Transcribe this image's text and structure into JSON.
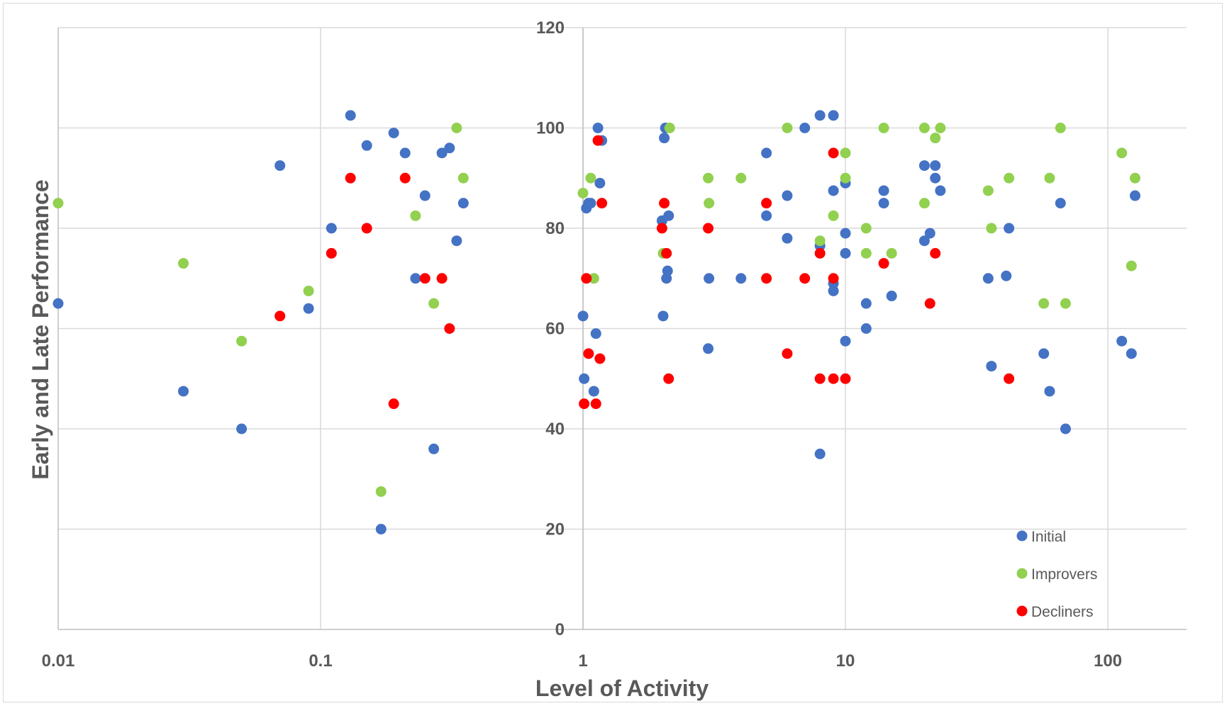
{
  "chart_data": {
    "type": "scatter",
    "title": "",
    "xlabel": "Level of Activity",
    "ylabel": "Early and Late Performance",
    "x_scale": "log",
    "xlim": [
      0.01,
      200
    ],
    "ylim": [
      0,
      120
    ],
    "x_ticks": [
      "0.01",
      "0.1",
      "1",
      "10",
      "100"
    ],
    "y_ticks": [
      "0",
      "20",
      "40",
      "60",
      "80",
      "100",
      "120"
    ],
    "grid": true,
    "legend_position": "bottom-right",
    "series": [
      {
        "name": "Initial",
        "color": "#4472C4",
        "points": [
          [
            0.01,
            65
          ],
          [
            0.03,
            47.5
          ],
          [
            0.05,
            40
          ],
          [
            0.07,
            92.5
          ],
          [
            0.09,
            64
          ],
          [
            0.11,
            80
          ],
          [
            0.13,
            102.5
          ],
          [
            0.15,
            96.5
          ],
          [
            0.17,
            20
          ],
          [
            0.19,
            99
          ],
          [
            0.21,
            95
          ],
          [
            0.23,
            70
          ],
          [
            0.25,
            86.5
          ],
          [
            0.27,
            36
          ],
          [
            0.29,
            95
          ],
          [
            0.31,
            96
          ],
          [
            0.33,
            77.5
          ],
          [
            0.35,
            85
          ],
          [
            1.0,
            62.5
          ],
          [
            1.01,
            50
          ],
          [
            1.03,
            84
          ],
          [
            1.05,
            85
          ],
          [
            1.07,
            85
          ],
          [
            1.1,
            47.5
          ],
          [
            1.12,
            59
          ],
          [
            1.14,
            100
          ],
          [
            1.16,
            89
          ],
          [
            1.18,
            97.5
          ],
          [
            2.0,
            81.5
          ],
          [
            2.02,
            62.5
          ],
          [
            2.04,
            98
          ],
          [
            2.06,
            100
          ],
          [
            2.08,
            70
          ],
          [
            2.1,
            71.5
          ],
          [
            2.12,
            82.5
          ],
          [
            3.0,
            56
          ],
          [
            3.02,
            70
          ],
          [
            4.0,
            70
          ],
          [
            5.0,
            95
          ],
          [
            5.0,
            82.5
          ],
          [
            6.0,
            86.5
          ],
          [
            6.0,
            78
          ],
          [
            7.0,
            100
          ],
          [
            8.0,
            102.5
          ],
          [
            8.0,
            76.5
          ],
          [
            8.0,
            35
          ],
          [
            9.0,
            102.5
          ],
          [
            9.0,
            87.5
          ],
          [
            9.0,
            69
          ],
          [
            9.0,
            67.5
          ],
          [
            10.0,
            89
          ],
          [
            10.0,
            79
          ],
          [
            10.0,
            75
          ],
          [
            10.0,
            57.5
          ],
          [
            12.0,
            65
          ],
          [
            12.0,
            60
          ],
          [
            14.0,
            87.5
          ],
          [
            14.0,
            85
          ],
          [
            15.0,
            66.5
          ],
          [
            20.0,
            92.5
          ],
          [
            20.0,
            77.5
          ],
          [
            21.0,
            79
          ],
          [
            22.0,
            92.5
          ],
          [
            22.0,
            90
          ],
          [
            23.0,
            87.5
          ],
          [
            35.0,
            70
          ],
          [
            36.0,
            52.5
          ],
          [
            41.0,
            70.5
          ],
          [
            42.0,
            80
          ],
          [
            57.0,
            55
          ],
          [
            60.0,
            47.5
          ],
          [
            66.0,
            85
          ],
          [
            69.0,
            40
          ],
          [
            113.0,
            57.5
          ],
          [
            123.0,
            55
          ],
          [
            127.0,
            86.5
          ]
        ]
      },
      {
        "name": "Improvers",
        "color": "#92D050",
        "points": [
          [
            0.01,
            85
          ],
          [
            0.03,
            73
          ],
          [
            0.05,
            57.5
          ],
          [
            0.09,
            67.5
          ],
          [
            0.17,
            27.5
          ],
          [
            0.23,
            82.5
          ],
          [
            0.27,
            65
          ],
          [
            0.33,
            100
          ],
          [
            0.35,
            90
          ],
          [
            1.0,
            87
          ],
          [
            1.07,
            90
          ],
          [
            1.1,
            70
          ],
          [
            2.02,
            75
          ],
          [
            2.14,
            100
          ],
          [
            3.0,
            90
          ],
          [
            3.02,
            85
          ],
          [
            4.0,
            90
          ],
          [
            6.0,
            100
          ],
          [
            8.0,
            77.5
          ],
          [
            9.0,
            82.5
          ],
          [
            10.0,
            95
          ],
          [
            10.0,
            90
          ],
          [
            12.0,
            80
          ],
          [
            12.0,
            75
          ],
          [
            14.0,
            100
          ],
          [
            15.0,
            75
          ],
          [
            20.0,
            100
          ],
          [
            20.0,
            85
          ],
          [
            22.0,
            98
          ],
          [
            23.0,
            100
          ],
          [
            35.0,
            87.5
          ],
          [
            36.0,
            80
          ],
          [
            42.0,
            90
          ],
          [
            57.0,
            65
          ],
          [
            60.0,
            90
          ],
          [
            66.0,
            100
          ],
          [
            69.0,
            65
          ],
          [
            113.0,
            95
          ],
          [
            123.0,
            72.5
          ],
          [
            127.0,
            90
          ]
        ]
      },
      {
        "name": "Decliners",
        "color": "#FF0000",
        "points": [
          [
            0.07,
            62.5
          ],
          [
            0.11,
            75
          ],
          [
            0.13,
            90
          ],
          [
            0.15,
            80
          ],
          [
            0.19,
            45
          ],
          [
            0.21,
            90
          ],
          [
            0.25,
            70
          ],
          [
            0.29,
            70
          ],
          [
            0.31,
            60
          ],
          [
            1.01,
            45
          ],
          [
            1.03,
            70
          ],
          [
            1.05,
            55
          ],
          [
            1.12,
            45
          ],
          [
            1.14,
            97.5
          ],
          [
            1.16,
            54
          ],
          [
            1.18,
            85
          ],
          [
            2.0,
            80
          ],
          [
            2.04,
            85
          ],
          [
            2.08,
            75
          ],
          [
            2.12,
            50
          ],
          [
            3.0,
            80
          ],
          [
            5.0,
            85
          ],
          [
            5.0,
            70
          ],
          [
            6.0,
            55
          ],
          [
            7.0,
            70
          ],
          [
            8.0,
            75
          ],
          [
            8.0,
            50
          ],
          [
            9.0,
            95
          ],
          [
            9.0,
            70
          ],
          [
            9.0,
            50
          ],
          [
            10.0,
            50
          ],
          [
            14.0,
            73
          ],
          [
            21.0,
            65
          ],
          [
            22.0,
            75
          ],
          [
            42.0,
            50
          ]
        ]
      }
    ]
  }
}
